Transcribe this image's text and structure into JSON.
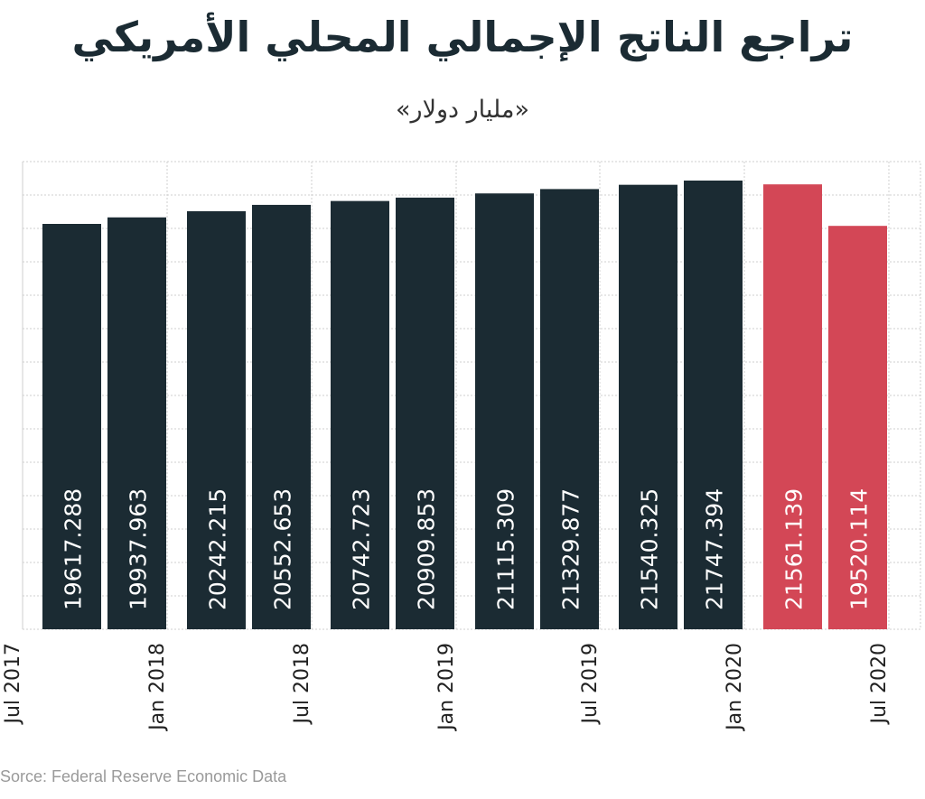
{
  "chart_data": {
    "type": "bar",
    "title": "تراجع الناتج الإجمالي المحلي الأمريكي",
    "subtitle": "«مليار دولار»",
    "source": "Sorce: Federal Reserve Economic Data",
    "x_tick_labels": [
      "Jul 2017",
      "Jan 2018",
      "Jul 2018",
      "Jan 2019",
      "Jul 2019",
      "Jan 2020",
      "Jul 2020"
    ],
    "bars": [
      {
        "value": 19617.288,
        "label": "19617.288",
        "color": "#1b2b33"
      },
      {
        "value": 19937.963,
        "label": "19937.963",
        "color": "#1b2b33"
      },
      {
        "value": 20242.215,
        "label": "20242.215",
        "color": "#1b2b33"
      },
      {
        "value": 20552.653,
        "label": "20552.653",
        "color": "#1b2b33"
      },
      {
        "value": 20742.723,
        "label": "20742.723",
        "color": "#1b2b33"
      },
      {
        "value": 20909.853,
        "label": "20909.853",
        "color": "#1b2b33"
      },
      {
        "value": 21115.309,
        "label": "21115.309",
        "color": "#1b2b33"
      },
      {
        "value": 21329.877,
        "label": "21329.877",
        "color": "#1b2b33"
      },
      {
        "value": 21540.325,
        "label": "21540.325",
        "color": "#1b2b33"
      },
      {
        "value": 21747.394,
        "label": "21747.394",
        "color": "#1b2b33"
      },
      {
        "value": 21561.139,
        "label": "21561.139",
        "color": "#d34756"
      },
      {
        "value": 19520.114,
        "label": "19520.114",
        "color": "#d34756"
      }
    ],
    "grid": true,
    "legend": "none"
  }
}
